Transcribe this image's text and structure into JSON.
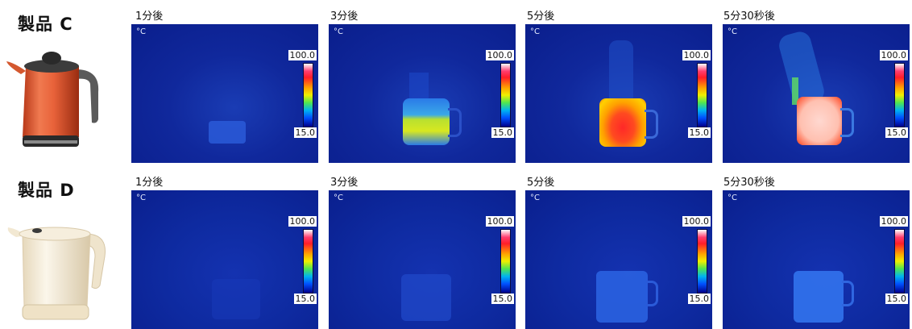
{
  "products": [
    {
      "label": "製品 C",
      "frames": [
        {
          "time": "1分後",
          "unit": "°C",
          "max": "100.0",
          "min": "15.0"
        },
        {
          "time": "3分後",
          "unit": "°C",
          "max": "100.0",
          "min": "15.0"
        },
        {
          "time": "5分後",
          "unit": "°C",
          "max": "100.0",
          "min": "15.0"
        },
        {
          "time": "5分30秒後",
          "unit": "°C",
          "max": "100.0",
          "min": "15.0"
        }
      ]
    },
    {
      "label": "製品 D",
      "frames": [
        {
          "time": "1分後",
          "unit": "°C",
          "max": "100.0",
          "min": "15.0"
        },
        {
          "time": "3分後",
          "unit": "°C",
          "max": "100.0",
          "min": "15.0"
        },
        {
          "time": "5分後",
          "unit": "°C",
          "max": "100.0",
          "min": "15.0"
        },
        {
          "time": "5分30秒後",
          "unit": "°C",
          "max": "100.0",
          "min": "15.0"
        }
      ]
    }
  ],
  "colors": {
    "kettle_c_body": "#e8623a",
    "kettle_d_body": "#f3ead6",
    "thermal_background": "#10289c"
  }
}
